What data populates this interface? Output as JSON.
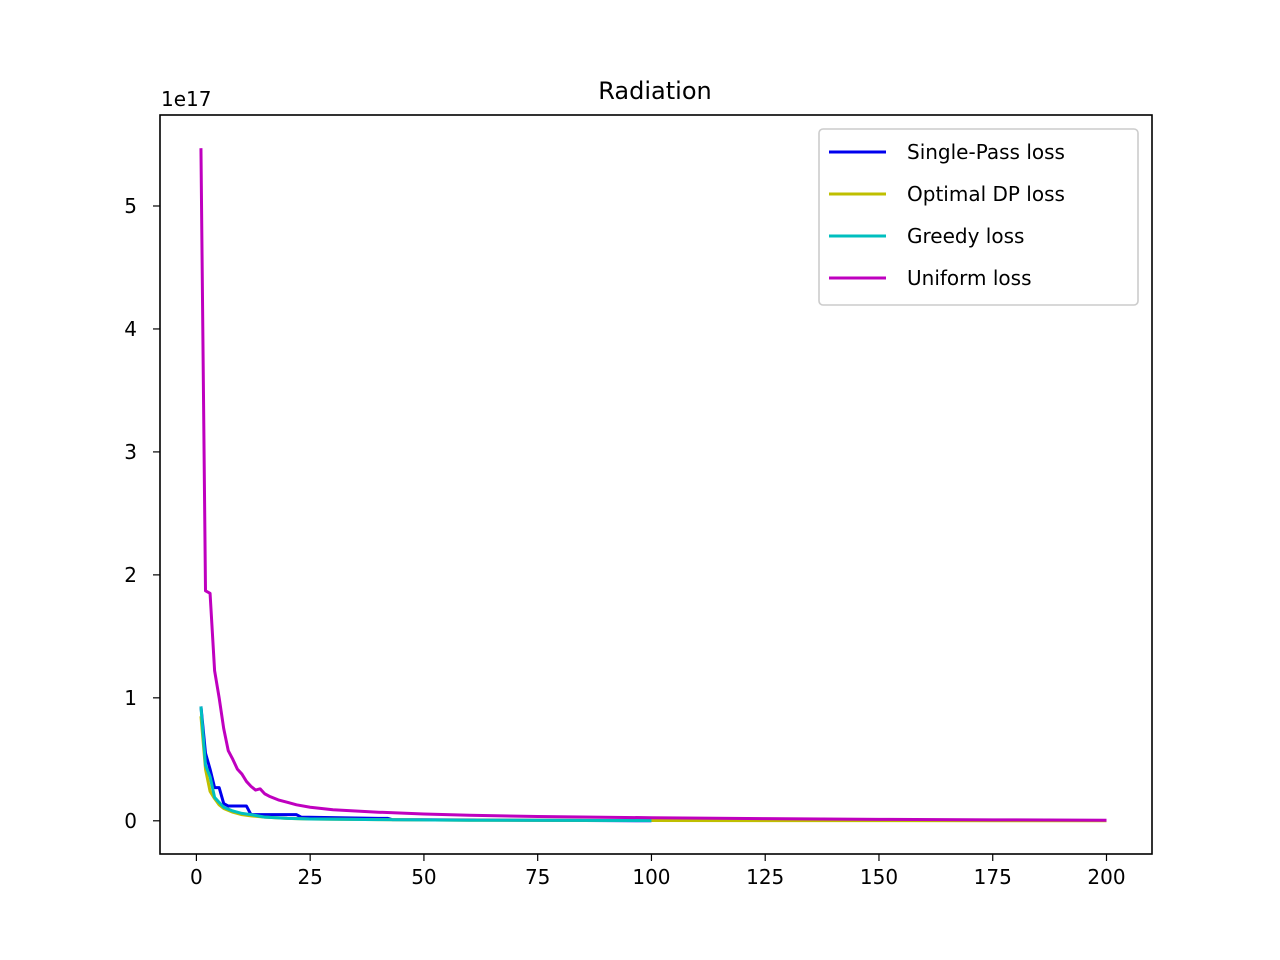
{
  "chart_data": {
    "type": "line",
    "title": "Radiation",
    "xlabel": "",
    "ylabel": "",
    "y_offset_label": "1e17",
    "y_scale": 1e+17,
    "xlim": [
      -8,
      210
    ],
    "ylim": [
      -0.27,
      5.74
    ],
    "xticks": [
      0,
      25,
      50,
      75,
      100,
      125,
      150,
      175,
      200
    ],
    "yticks": [
      0,
      1,
      2,
      3,
      4,
      5
    ],
    "legend_position": "top-right",
    "grid": false,
    "series": [
      {
        "name": "Single-Pass loss",
        "color": "#0000ee",
        "x": [
          1,
          2,
          3,
          4,
          5,
          6,
          7,
          10,
          11,
          12,
          13,
          20,
          22,
          23,
          40,
          42,
          43,
          100
        ],
        "y": [
          0.93,
          0.55,
          0.42,
          0.27,
          0.27,
          0.14,
          0.12,
          0.12,
          0.12,
          0.05,
          0.05,
          0.05,
          0.05,
          0.03,
          0.02,
          0.02,
          0.01,
          0.0
        ]
      },
      {
        "name": "Optimal DP loss",
        "color": "#bfbf00",
        "x": [
          1,
          2,
          3,
          4,
          5,
          6,
          8,
          10,
          12,
          15,
          20,
          25,
          40,
          60,
          100,
          150,
          200
        ],
        "y": [
          0.85,
          0.42,
          0.24,
          0.18,
          0.13,
          0.1,
          0.07,
          0.05,
          0.04,
          0.03,
          0.02,
          0.015,
          0.01,
          0.005,
          0.002,
          0.001,
          0.0
        ]
      },
      {
        "name": "Greedy loss",
        "color": "#00bfbf",
        "x": [
          1,
          2,
          3,
          4,
          5,
          6,
          8,
          10,
          12,
          15,
          20,
          25,
          40,
          60,
          100
        ],
        "y": [
          0.93,
          0.45,
          0.36,
          0.19,
          0.15,
          0.11,
          0.08,
          0.06,
          0.05,
          0.03,
          0.02,
          0.015,
          0.01,
          0.005,
          0.002
        ]
      },
      {
        "name": "Uniform loss",
        "color": "#bf00bf",
        "x": [
          1,
          2,
          3,
          4,
          5,
          6,
          7,
          8,
          9,
          10,
          11,
          12,
          13,
          14,
          15,
          16,
          18,
          20,
          22,
          25,
          30,
          35,
          40,
          50,
          60,
          75,
          100,
          125,
          150,
          175,
          200
        ],
        "y": [
          5.47,
          1.87,
          1.85,
          1.22,
          1.0,
          0.75,
          0.57,
          0.5,
          0.42,
          0.38,
          0.32,
          0.28,
          0.25,
          0.26,
          0.22,
          0.2,
          0.17,
          0.15,
          0.13,
          0.11,
          0.09,
          0.08,
          0.07,
          0.055,
          0.045,
          0.035,
          0.025,
          0.018,
          0.012,
          0.008,
          0.005
        ]
      }
    ]
  }
}
